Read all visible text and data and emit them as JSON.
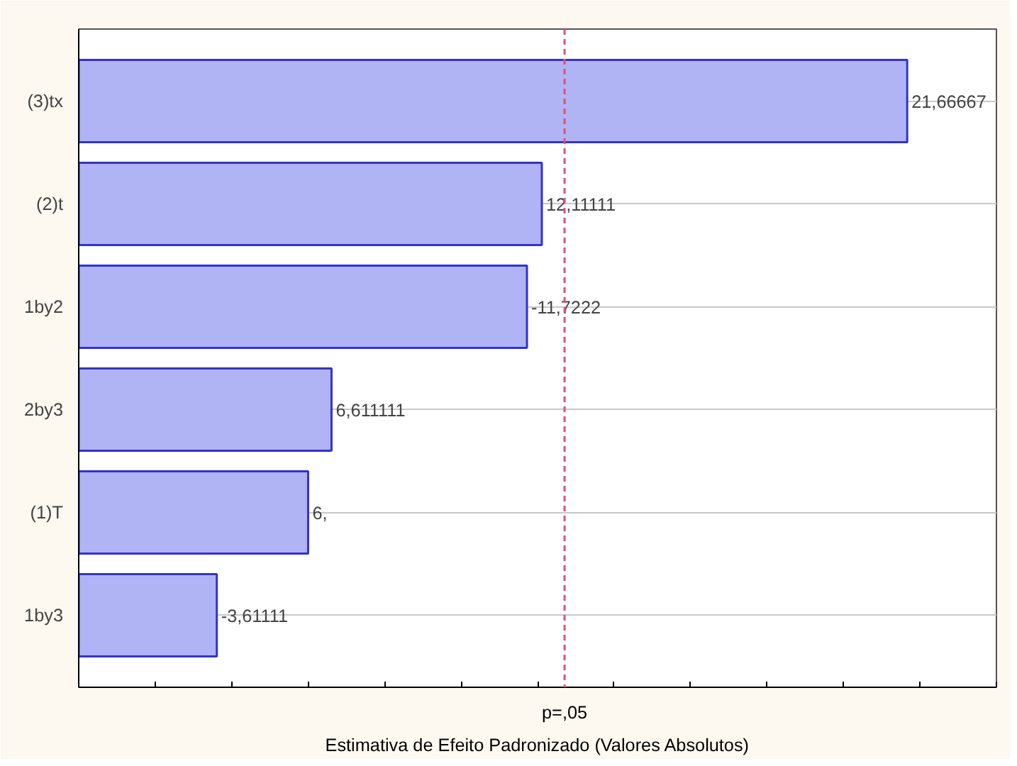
{
  "chart_data": {
    "type": "bar",
    "orientation": "horizontal",
    "xlabel": "Estimativa de Efeito Padronizado (Valores Absolutos)",
    "categories": [
      "(3)tx",
      "(2)t",
      "1by2",
      "2by3",
      "(1)T",
      "1by3"
    ],
    "values": [
      21.66667,
      12.11111,
      11.7222,
      6.611111,
      6.0,
      3.61111
    ],
    "value_labels": [
      "21,66667",
      "12,11111",
      "-11,7222",
      "6,611111",
      "6,",
      "-3,61111"
    ],
    "color": "#b0b4f4",
    "xlim": [
      0,
      24
    ],
    "xticks": [
      {
        "value": 0,
        "label": null
      },
      {
        "value": 2,
        "label": null
      },
      {
        "value": 4,
        "label": null
      },
      {
        "value": 6,
        "label": null
      },
      {
        "value": 8,
        "label": null
      },
      {
        "value": 10,
        "label": null
      },
      {
        "value": 12,
        "label": null
      },
      {
        "value": 14,
        "label": null
      },
      {
        "value": 16,
        "label": null
      },
      {
        "value": 18,
        "label": null
      },
      {
        "value": 20,
        "label": null
      },
      {
        "value": 22,
        "label": null
      },
      {
        "value": 24,
        "label": null
      }
    ],
    "ref_lines": [
      {
        "axis": "x",
        "value": 12.706,
        "label": "p=,05",
        "color": "#e05070",
        "line_style": "dashed"
      }
    ],
    "grid": "y"
  }
}
